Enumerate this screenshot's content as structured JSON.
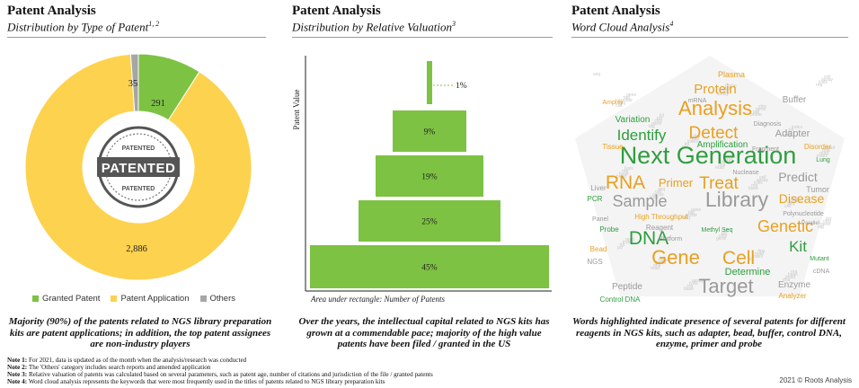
{
  "panels": [
    {
      "title": "Patent Analysis",
      "subtitle": "Distribution by Type of Patent",
      "subtitle_sup": "1, 2"
    },
    {
      "title": "Patent Analysis",
      "subtitle": "Distribution by Relative Valuation",
      "subtitle_sup": "3"
    },
    {
      "title": "Patent Analysis",
      "subtitle": "Word Cloud Analysis",
      "subtitle_sup": "4"
    }
  ],
  "chart_data": [
    {
      "type": "pie",
      "subtype": "donut",
      "categories": [
        "Granted Patent",
        "Patent Application",
        "Others"
      ],
      "values": [
        291,
        2886,
        35
      ],
      "colors": [
        "#7dc242",
        "#fdd24f",
        "#a6a6a6"
      ],
      "legend_position": "bottom",
      "center_stamp": "PATENTED"
    },
    {
      "type": "bar",
      "subtype": "stepped-pyramid",
      "categories": [
        "1%",
        "9%",
        "19%",
        "25%",
        "45%"
      ],
      "values": [
        1,
        9,
        19,
        25,
        45
      ],
      "ylabel": "Patent Value",
      "xlabel": "Area under rectangle: Number of Patents",
      "color": "#7dc242"
    }
  ],
  "wordcloud": {
    "words": [
      {
        "text": "Next Generation",
        "color": "#2e9e3e",
        "size": 27
      },
      {
        "text": "Library",
        "color": "#9a9a9a",
        "size": 23
      },
      {
        "text": "Analysis",
        "color": "#e8a020",
        "size": 22
      },
      {
        "text": "Target",
        "color": "#9a9a9a",
        "size": 22
      },
      {
        "text": "Gene",
        "color": "#e8a020",
        "size": 22
      },
      {
        "text": "Cell",
        "color": "#e8a020",
        "size": 21
      },
      {
        "text": "DNA",
        "color": "#2e9e3e",
        "size": 21
      },
      {
        "text": "RNA",
        "color": "#e8a020",
        "size": 21
      },
      {
        "text": "Detect",
        "color": "#e8a020",
        "size": 19
      },
      {
        "text": "Treat",
        "color": "#e8a020",
        "size": 19
      },
      {
        "text": "Genetic",
        "color": "#e8a020",
        "size": 18
      },
      {
        "text": "Sample",
        "color": "#9a9a9a",
        "size": 18
      },
      {
        "text": "Identify",
        "color": "#2e9e3e",
        "size": 17
      },
      {
        "text": "Kit",
        "color": "#2e9e3e",
        "size": 17
      },
      {
        "text": "Protein",
        "color": "#e8a020",
        "size": 15
      },
      {
        "text": "Disease",
        "color": "#e8a020",
        "size": 14
      },
      {
        "text": "Predict",
        "color": "#9a9a9a",
        "size": 14
      },
      {
        "text": "Primer",
        "color": "#e8a020",
        "size": 13
      },
      {
        "text": "Determine",
        "color": "#2e9e3e",
        "size": 11
      },
      {
        "text": "Adapter",
        "color": "#9a9a9a",
        "size": 11
      },
      {
        "text": "Variation",
        "color": "#2e9e3e",
        "size": 10
      },
      {
        "text": "Amplification",
        "color": "#2e9e3e",
        "size": 10
      },
      {
        "text": "Buffer",
        "color": "#9a9a9a",
        "size": 10
      },
      {
        "text": "Enzyme",
        "color": "#9a9a9a",
        "size": 10
      },
      {
        "text": "Peptide",
        "color": "#9a9a9a",
        "size": 10
      },
      {
        "text": "Plasma",
        "color": "#e8a020",
        "size": 9
      },
      {
        "text": "Tumor",
        "color": "#9a9a9a",
        "size": 9
      },
      {
        "text": "High Throughput",
        "color": "#e8a020",
        "size": 8
      },
      {
        "text": "Control DNA",
        "color": "#2e9e3e",
        "size": 8
      },
      {
        "text": "Analyzer",
        "color": "#e8a020",
        "size": 8
      },
      {
        "text": "PCR",
        "color": "#2e9e3e",
        "size": 8
      },
      {
        "text": "Probe",
        "color": "#2e9e3e",
        "size": 8
      },
      {
        "text": "Liver",
        "color": "#9a9a9a",
        "size": 8
      },
      {
        "text": "Tissue",
        "color": "#e8a020",
        "size": 8
      },
      {
        "text": "Reagent",
        "color": "#9a9a9a",
        "size": 8
      },
      {
        "text": "Bead",
        "color": "#e8a020",
        "size": 8
      },
      {
        "text": "NGS",
        "color": "#9a9a9a",
        "size": 8
      },
      {
        "text": "Methyl Seq",
        "color": "#2e9e3e",
        "size": 7
      },
      {
        "text": "Disorder",
        "color": "#e8a020",
        "size": 8
      },
      {
        "text": "Lung",
        "color": "#2e9e3e",
        "size": 7
      },
      {
        "text": "Platform",
        "color": "#9a9a9a",
        "size": 7
      },
      {
        "text": "Panel",
        "color": "#9a9a9a",
        "size": 7
      },
      {
        "text": "Mutant",
        "color": "#2e9e3e",
        "size": 7
      },
      {
        "text": "cDNA",
        "color": "#9a9a9a",
        "size": 7
      },
      {
        "text": "Polynucleotide",
        "color": "#9a9a9a",
        "size": 7
      },
      {
        "text": "Diagnosis",
        "color": "#9a9a9a",
        "size": 7
      },
      {
        "text": "Fragment",
        "color": "#9a9a9a",
        "size": 7
      },
      {
        "text": "Nuclease",
        "color": "#9a9a9a",
        "size": 7
      },
      {
        "text": "mRNA",
        "color": "#9a9a9a",
        "size": 7
      },
      {
        "text": "Amplify",
        "color": "#e8a020",
        "size": 7
      },
      {
        "text": "Parallel",
        "color": "#9a9a9a",
        "size": 6
      }
    ]
  },
  "captions": [
    "Majority (90%) of the patents related to NGS library preparation kits are patent applications; in addition, the top patent assignees are non-industry players",
    "Over the years, the intellectual capital related to NGS kits has grown at a commendable pace; majority of the high value patents have been filed / granted in the US",
    "Words highlighted indicate presence of several patents for different reagents in NGS kits, such as adapter, bead, buffer, control DNA, enzyme, primer and probe"
  ],
  "notes": [
    {
      "label": "Note 1:",
      "text": "For 2021, data is updated as of the month when the analysis/research was conducted"
    },
    {
      "label": "Note 2:",
      "text": "The 'Others' category includes search reports and amended application"
    },
    {
      "label": "Note 3:",
      "text": "Relative valuation of patents was calculated based on several parameters, such as patent age, number of citations and jurisdiction of the file / granted patents"
    },
    {
      "label": "Note 4:",
      "text": "Word cloud analysis represents the keywords that were most frequently used in the titles of patents related to NGS library preparation kits"
    }
  ],
  "copyright": "2021 © Roots Analysis"
}
